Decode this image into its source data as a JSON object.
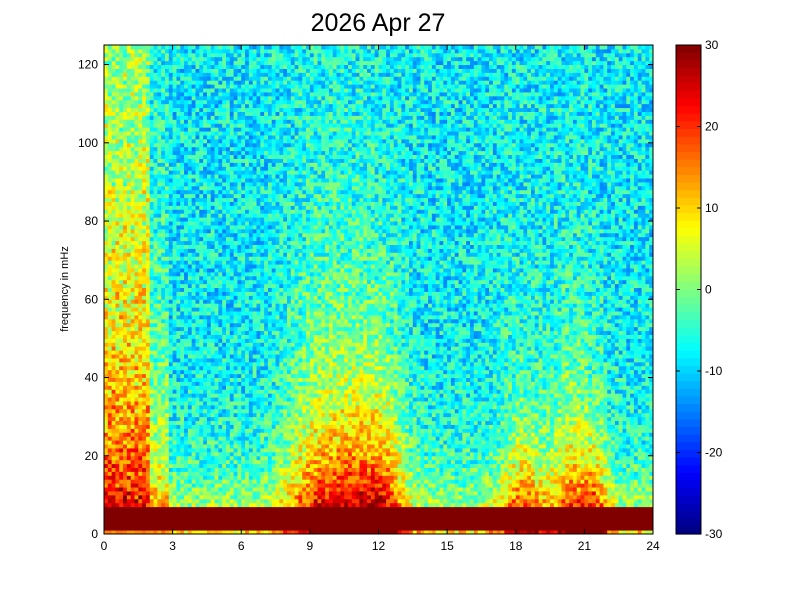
{
  "chart_data": {
    "type": "heatmap",
    "title": "2026 Apr 27",
    "xlabel": "",
    "ylabel": "frequency in mHz",
    "xlim": [
      0,
      24
    ],
    "ylim": [
      0,
      125
    ],
    "x_ticks": [
      "0",
      "3",
      "6",
      "9",
      "12",
      "15",
      "18",
      "21",
      "24"
    ],
    "y_ticks": [
      "0",
      "20",
      "40",
      "60",
      "80",
      "100",
      "120"
    ],
    "colorbar": {
      "range": [
        -30,
        30
      ],
      "ticks": [
        "30",
        "20",
        "10",
        "0",
        "-10",
        "-20",
        "-30"
      ],
      "colormap": "jet"
    },
    "grid_resolution": {
      "hours": 144,
      "freq_bins": 125
    },
    "features": [
      {
        "x_hours": [
          0,
          2
        ],
        "y_mhz": [
          0,
          125
        ],
        "level": 20,
        "description": "broadband high power through all frequencies"
      },
      {
        "x_hours": [
          0,
          24
        ],
        "y_mhz": [
          1,
          6
        ],
        "level": 30,
        "description": "strong low-frequency band"
      },
      {
        "x_hours": [
          8.5,
          13
        ],
        "y_mhz": [
          0,
          35
        ],
        "level": 22,
        "description": "enhanced power"
      },
      {
        "x_hours": [
          17.5,
          22
        ],
        "y_mhz": [
          0,
          25
        ],
        "level": 20,
        "description": "enhanced power"
      }
    ],
    "background_level": -8
  }
}
